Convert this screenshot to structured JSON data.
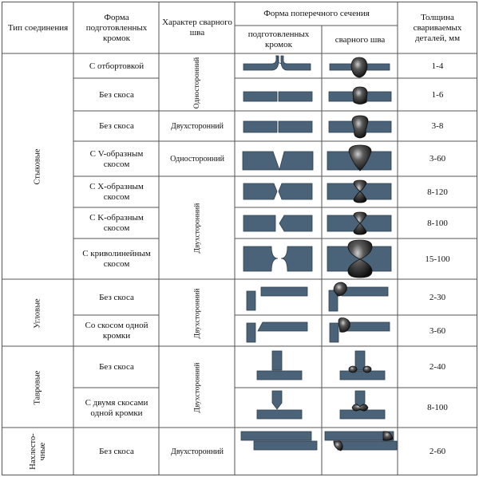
{
  "header": {
    "joint_type": "Тип соединения",
    "edge_form": "Форма подготовленных кромок",
    "weld_character": "Характер сварного шва",
    "cross_section": "Форма поперечного сечения",
    "cs_prepared": "подготовленных кромок",
    "cs_weld": "сварного шва",
    "thickness": "Толщина свариваемых деталей, мм"
  },
  "groups": {
    "butt": "Стыковые",
    "corner": "Угловые",
    "tee": "Тавровые",
    "lap": "Нахлесто-\nчные"
  },
  "weld": {
    "one_sided": "Односторонний",
    "two_sided": "Двухсторонний"
  },
  "rows": [
    {
      "edge": "С отбортовкой",
      "thickness": "1-4"
    },
    {
      "edge": "Без скоса",
      "thickness": "1-6"
    },
    {
      "edge": "Без скоса",
      "thickness": "3-8"
    },
    {
      "edge": "С V-образным скосом",
      "thickness": "3-60"
    },
    {
      "edge": "С X-образным скосом",
      "thickness": "8-120"
    },
    {
      "edge": "С K-образным скосом",
      "thickness": "8-100"
    },
    {
      "edge": "С криволинейным скосом",
      "thickness": "15-100"
    },
    {
      "edge": "Без скоса",
      "thickness": "2-30"
    },
    {
      "edge": "Со скосом одной кромки",
      "thickness": "3-60"
    },
    {
      "edge": "Без скоса",
      "thickness": "2-40"
    },
    {
      "edge": "С двумя скосами одной кромки",
      "thickness": "8-100"
    },
    {
      "edge": "Без скоса",
      "thickness": "2-60"
    }
  ],
  "colors": {
    "plate": "#4b6378",
    "plate_stroke": "#2f4050",
    "weld": "#1a1a1a",
    "grid": "#555555"
  }
}
